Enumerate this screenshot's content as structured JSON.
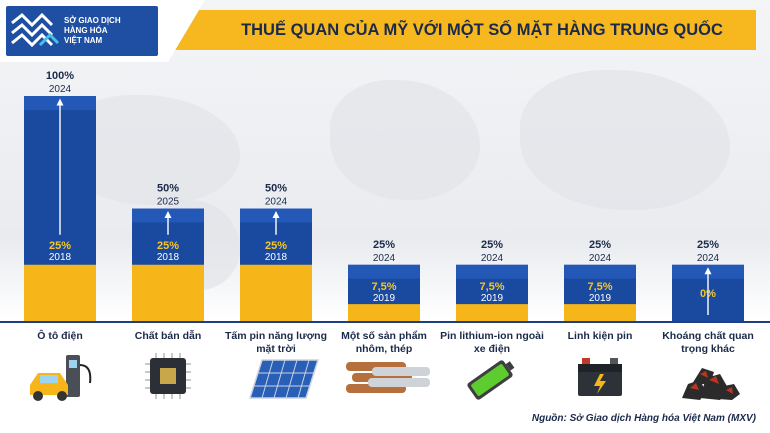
{
  "logo": {
    "line1": "SỞ GIAO DỊCH",
    "line2": "HÀNG HÓA",
    "line3": "VIỆT NAM"
  },
  "source": "Nguồn: Sở Giao dịch Hàng hóa Việt Nam (MXV)",
  "colors": {
    "bar_new": "#1a4aa0",
    "bar_old": "#f6b619",
    "header_band": "#f7b81f",
    "label_dark": "#1b2a4a",
    "label_yellow": "#f6c623"
  },
  "chart_data": {
    "type": "bar",
    "title": "THUẾ QUAN CỦA MỸ VỚI MỘT SỐ MẶT HÀNG TRUNG QUỐC",
    "unit": "%",
    "ylim": [
      0,
      100
    ],
    "categories": [
      [
        "Ô tô điện"
      ],
      [
        "Chất bán dẫn"
      ],
      [
        "Tấm pin năng lượng",
        "mặt trời"
      ],
      [
        "Một số sản phẩm",
        "nhôm, thép"
      ],
      [
        "Pin lithium-ion ngoài",
        "xe điện"
      ],
      [
        "Linh kiện pin"
      ],
      [
        "Khoáng chất quan",
        "trọng khác"
      ]
    ],
    "series": [
      {
        "year_labels": [
          "2018",
          "2018",
          "2018",
          "2019",
          "2019",
          "2019",
          ""
        ],
        "values": [
          25,
          25,
          25,
          7.5,
          7.5,
          7.5,
          0
        ],
        "labels": [
          "25%",
          "25%",
          "25%",
          "7,5%",
          "7,5%",
          "7,5%",
          "0%"
        ]
      },
      {
        "year_labels": [
          "2024",
          "2025",
          "2024",
          "2024",
          "2024",
          "2024",
          "2024"
        ],
        "values": [
          100,
          50,
          50,
          25,
          25,
          25,
          25
        ],
        "labels": [
          "100%",
          "50%",
          "50%",
          "25%",
          "25%",
          "25%",
          "25%"
        ]
      }
    ]
  }
}
